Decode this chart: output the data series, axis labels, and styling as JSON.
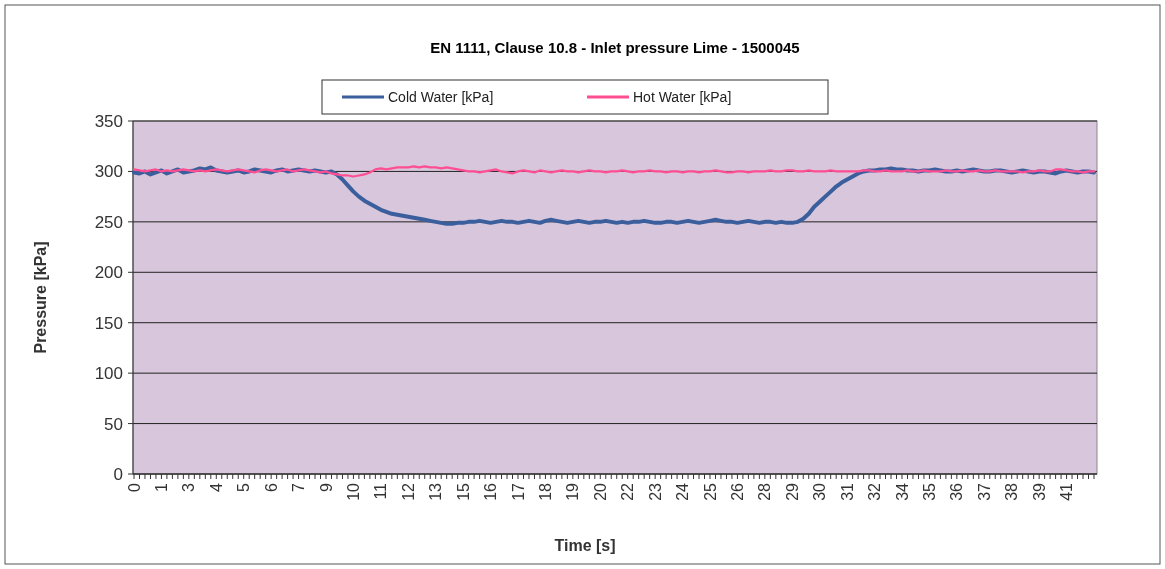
{
  "chart_data": {
    "type": "line",
    "title": "EN 1111, Clause 10.8 - Inlet pressure Lime  - 1500045",
    "xlabel": "Time [s]",
    "ylabel": "Pressure [kPa]",
    "categories": [
      "0",
      null,
      null,
      null,
      null,
      "1",
      null,
      null,
      null,
      null,
      "3",
      null,
      null,
      null,
      null,
      "4",
      null,
      null,
      null,
      null,
      "5",
      null,
      null,
      null,
      null,
      "6",
      null,
      null,
      null,
      null,
      "7",
      null,
      null,
      null,
      null,
      "9",
      null,
      null,
      null,
      null,
      "10",
      null,
      null,
      null,
      null,
      "11",
      null,
      null,
      null,
      null,
      "12",
      null,
      null,
      null,
      null,
      "13",
      null,
      null,
      null,
      null,
      "15",
      null,
      null,
      null,
      null,
      "16",
      null,
      null,
      null,
      null,
      "17",
      null,
      null,
      null,
      null,
      "18",
      null,
      null,
      null,
      null,
      "19",
      null,
      null,
      null,
      null,
      "20",
      null,
      null,
      null,
      null,
      "22",
      null,
      null,
      null,
      null,
      "23",
      null,
      null,
      null,
      null,
      "24",
      null,
      null,
      null,
      null,
      "25",
      null,
      null,
      null,
      null,
      "26",
      null,
      null,
      null,
      null,
      "28",
      null,
      null,
      null,
      null,
      "29",
      null,
      null,
      null,
      null,
      "30",
      null,
      null,
      null,
      null,
      "31",
      null,
      null,
      null,
      null,
      "32",
      null,
      null,
      null,
      null,
      "34",
      null,
      null,
      null,
      null,
      "35",
      null,
      null,
      null,
      null,
      "36",
      null,
      null,
      null,
      null,
      "37",
      null,
      null,
      null,
      null,
      "38",
      null,
      null,
      null,
      null,
      "39",
      null,
      null,
      null,
      null,
      "41",
      null,
      null,
      null,
      null,
      null
    ],
    "series": [
      {
        "name": "Cold Water [kPa]",
        "color": "#3b5f9c",
        "values": [
          299,
          298,
          300,
          297,
          299,
          301,
          298,
          300,
          302,
          299,
          300,
          301,
          303,
          302,
          304,
          301,
          300,
          299,
          300,
          301,
          299,
          300,
          302,
          301,
          300,
          299,
          301,
          302,
          300,
          301,
          302,
          301,
          300,
          301,
          300,
          299,
          300,
          297,
          292,
          286,
          280,
          275,
          271,
          268,
          265,
          262,
          260,
          258,
          257,
          256,
          255,
          254,
          253,
          252,
          251,
          250,
          249,
          248,
          248,
          249,
          249,
          250,
          250,
          251,
          250,
          249,
          250,
          251,
          250,
          250,
          249,
          250,
          251,
          250,
          249,
          251,
          252,
          251,
          250,
          249,
          250,
          251,
          250,
          249,
          250,
          250,
          251,
          250,
          249,
          250,
          249,
          250,
          250,
          251,
          250,
          249,
          249,
          250,
          250,
          249,
          250,
          251,
          250,
          249,
          250,
          251,
          252,
          251,
          250,
          250,
          249,
          250,
          251,
          250,
          249,
          250,
          250,
          249,
          250,
          249,
          249,
          250,
          253,
          258,
          265,
          270,
          275,
          280,
          285,
          289,
          292,
          295,
          298,
          300,
          301,
          301,
          302,
          302,
          303,
          302,
          302,
          301,
          301,
          300,
          301,
          301,
          302,
          301,
          300,
          300,
          301,
          300,
          301,
          302,
          301,
          300,
          300,
          301,
          301,
          300,
          299,
          300,
          301,
          300,
          299,
          300,
          300,
          299,
          298,
          300,
          301,
          300,
          299,
          300,
          300,
          299
        ]
      },
      {
        "name": "Hot Water [kPa]",
        "color": "#ff4f92",
        "values": [
          302,
          301,
          300,
          301,
          302,
          300,
          301,
          300,
          301,
          302,
          301,
          300,
          301,
          300,
          301,
          302,
          301,
          300,
          301,
          302,
          301,
          300,
          299,
          301,
          302,
          301,
          300,
          301,
          302,
          300,
          301,
          302,
          301,
          300,
          299,
          300,
          298,
          297,
          296,
          296,
          295,
          296,
          297,
          299,
          302,
          303,
          302,
          303,
          304,
          304,
          304,
          305,
          304,
          305,
          304,
          304,
          303,
          304,
          303,
          302,
          301,
          300,
          300,
          299,
          300,
          301,
          302,
          300,
          299,
          298,
          300,
          301,
          300,
          299,
          301,
          300,
          299,
          300,
          301,
          300,
          300,
          299,
          300,
          301,
          300,
          300,
          299,
          300,
          300,
          301,
          300,
          299,
          300,
          300,
          301,
          300,
          300,
          299,
          300,
          300,
          299,
          300,
          300,
          299,
          300,
          300,
          301,
          300,
          299,
          299,
          300,
          300,
          299,
          300,
          300,
          300,
          301,
          300,
          300,
          301,
          301,
          300,
          300,
          301,
          300,
          300,
          300,
          301,
          300,
          300,
          300,
          300,
          300,
          301,
          301,
          300,
          300,
          301,
          300,
          300,
          300,
          301,
          300,
          300,
          301,
          300,
          300,
          300,
          301,
          300,
          300,
          301,
          300,
          300,
          301,
          300,
          300,
          301,
          300,
          300,
          300,
          300,
          299,
          300,
          300,
          301,
          300,
          300,
          302,
          302,
          301,
          300,
          300,
          299,
          300,
          300
        ]
      }
    ],
    "ylim": [
      0,
      350
    ],
    "yticks": [
      0,
      50,
      100,
      150,
      200,
      250,
      300,
      350
    ],
    "grid": "y",
    "legend": "top",
    "line_style": "solid",
    "marker": "none"
  }
}
